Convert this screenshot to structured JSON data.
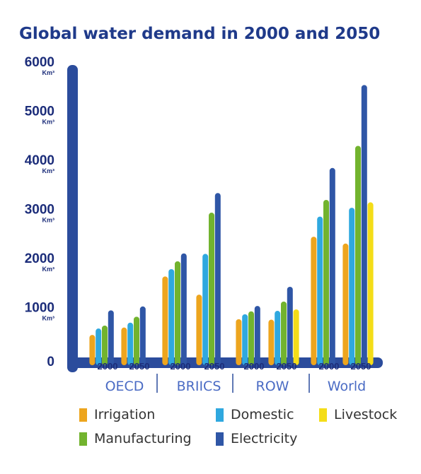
{
  "colors": {
    "accent": "#2b4c9c",
    "title": "#1f3a8a",
    "axis_text": "#1c2d7a",
    "group_label": "#4a6bc4",
    "irrigation": "#eda51e",
    "domestic": "#2fa8df",
    "manufacturing": "#72b32e",
    "electricity": "#2f56a6",
    "livestock": "#f4dd18"
  },
  "chart_data": {
    "type": "bar",
    "title": "Global water demand in 2000 and 2050",
    "xlabel": "",
    "ylabel": "",
    "ylim": [
      0,
      6000
    ],
    "grid": false,
    "legend_position": "bottom",
    "y_ticks": [
      "0",
      "1000",
      "2000",
      "3000",
      "4000",
      "5000",
      "6000"
    ],
    "y_unit": "Km³",
    "groups": [
      "OECD",
      "BRIICS",
      "ROW",
      "World"
    ],
    "years": [
      "2000",
      "2050"
    ],
    "categories": [
      "OECD 2000",
      "OECD 2050",
      "BRIICS 2000",
      "BRIICS 2050",
      "ROW 2000",
      "ROW 2050",
      "World 2000",
      "World 2050"
    ],
    "series": [
      {
        "name": "Irrigation",
        "values": [
          560,
          710,
          1750,
          1380,
          880,
          870,
          2560,
          2420
        ]
      },
      {
        "name": "Domestic",
        "values": [
          690,
          810,
          1900,
          2210,
          980,
          1050,
          2970,
          3150
        ]
      },
      {
        "name": "Manufacturing",
        "values": [
          750,
          930,
          2060,
          3050,
          1040,
          1240,
          3310,
          4410
        ]
      },
      {
        "name": "Electricity",
        "values": [
          1060,
          1140,
          2220,
          3450,
          1150,
          1540,
          3960,
          5650
        ]
      },
      {
        "name": "Livestock",
        "values": [
          0,
          0,
          0,
          0,
          0,
          1080,
          0,
          3260
        ]
      }
    ]
  },
  "legend": [
    {
      "label": "Irrigation",
      "color_key": "irrigation"
    },
    {
      "label": "Domestic",
      "color_key": "domestic"
    },
    {
      "label": "Livestock",
      "color_key": "livestock"
    },
    {
      "label": "Manufacturing",
      "color_key": "manufacturing"
    },
    {
      "label": "Electricity",
      "color_key": "electricity"
    }
  ]
}
